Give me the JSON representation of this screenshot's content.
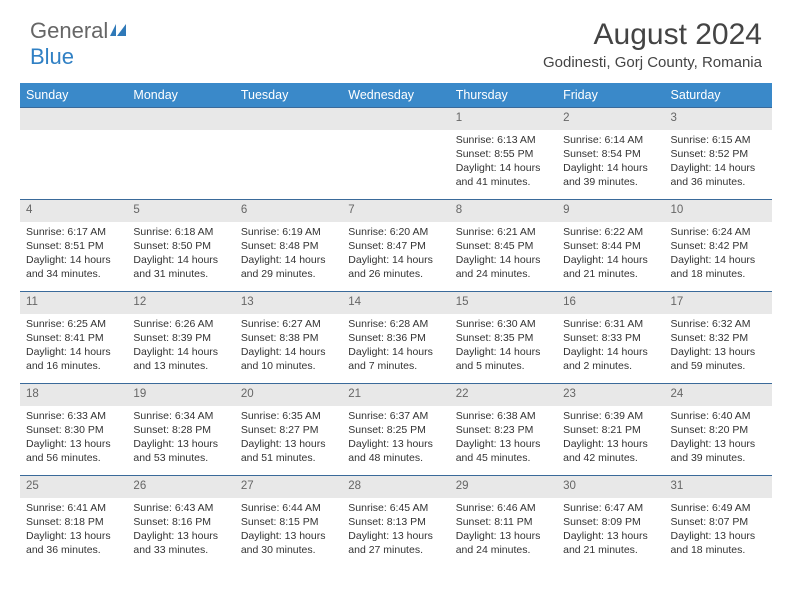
{
  "logo": {
    "text1": "General",
    "text2": "Blue"
  },
  "month_title": "August 2024",
  "location": "Godinesti, Gorj County, Romania",
  "header_bg": "#3a89c9",
  "header_fg": "#ffffff",
  "daynum_bg": "#e8e8e8",
  "border_color": "#3a6a9a",
  "day_headers": [
    "Sunday",
    "Monday",
    "Tuesday",
    "Wednesday",
    "Thursday",
    "Friday",
    "Saturday"
  ],
  "weeks": [
    [
      null,
      null,
      null,
      null,
      {
        "n": "1",
        "sr": "Sunrise: 6:13 AM",
        "ss": "Sunset: 8:55 PM",
        "dl": "Daylight: 14 hours and 41 minutes."
      },
      {
        "n": "2",
        "sr": "Sunrise: 6:14 AM",
        "ss": "Sunset: 8:54 PM",
        "dl": "Daylight: 14 hours and 39 minutes."
      },
      {
        "n": "3",
        "sr": "Sunrise: 6:15 AM",
        "ss": "Sunset: 8:52 PM",
        "dl": "Daylight: 14 hours and 36 minutes."
      }
    ],
    [
      {
        "n": "4",
        "sr": "Sunrise: 6:17 AM",
        "ss": "Sunset: 8:51 PM",
        "dl": "Daylight: 14 hours and 34 minutes."
      },
      {
        "n": "5",
        "sr": "Sunrise: 6:18 AM",
        "ss": "Sunset: 8:50 PM",
        "dl": "Daylight: 14 hours and 31 minutes."
      },
      {
        "n": "6",
        "sr": "Sunrise: 6:19 AM",
        "ss": "Sunset: 8:48 PM",
        "dl": "Daylight: 14 hours and 29 minutes."
      },
      {
        "n": "7",
        "sr": "Sunrise: 6:20 AM",
        "ss": "Sunset: 8:47 PM",
        "dl": "Daylight: 14 hours and 26 minutes."
      },
      {
        "n": "8",
        "sr": "Sunrise: 6:21 AM",
        "ss": "Sunset: 8:45 PM",
        "dl": "Daylight: 14 hours and 24 minutes."
      },
      {
        "n": "9",
        "sr": "Sunrise: 6:22 AM",
        "ss": "Sunset: 8:44 PM",
        "dl": "Daylight: 14 hours and 21 minutes."
      },
      {
        "n": "10",
        "sr": "Sunrise: 6:24 AM",
        "ss": "Sunset: 8:42 PM",
        "dl": "Daylight: 14 hours and 18 minutes."
      }
    ],
    [
      {
        "n": "11",
        "sr": "Sunrise: 6:25 AM",
        "ss": "Sunset: 8:41 PM",
        "dl": "Daylight: 14 hours and 16 minutes."
      },
      {
        "n": "12",
        "sr": "Sunrise: 6:26 AM",
        "ss": "Sunset: 8:39 PM",
        "dl": "Daylight: 14 hours and 13 minutes."
      },
      {
        "n": "13",
        "sr": "Sunrise: 6:27 AM",
        "ss": "Sunset: 8:38 PM",
        "dl": "Daylight: 14 hours and 10 minutes."
      },
      {
        "n": "14",
        "sr": "Sunrise: 6:28 AM",
        "ss": "Sunset: 8:36 PM",
        "dl": "Daylight: 14 hours and 7 minutes."
      },
      {
        "n": "15",
        "sr": "Sunrise: 6:30 AM",
        "ss": "Sunset: 8:35 PM",
        "dl": "Daylight: 14 hours and 5 minutes."
      },
      {
        "n": "16",
        "sr": "Sunrise: 6:31 AM",
        "ss": "Sunset: 8:33 PM",
        "dl": "Daylight: 14 hours and 2 minutes."
      },
      {
        "n": "17",
        "sr": "Sunrise: 6:32 AM",
        "ss": "Sunset: 8:32 PM",
        "dl": "Daylight: 13 hours and 59 minutes."
      }
    ],
    [
      {
        "n": "18",
        "sr": "Sunrise: 6:33 AM",
        "ss": "Sunset: 8:30 PM",
        "dl": "Daylight: 13 hours and 56 minutes."
      },
      {
        "n": "19",
        "sr": "Sunrise: 6:34 AM",
        "ss": "Sunset: 8:28 PM",
        "dl": "Daylight: 13 hours and 53 minutes."
      },
      {
        "n": "20",
        "sr": "Sunrise: 6:35 AM",
        "ss": "Sunset: 8:27 PM",
        "dl": "Daylight: 13 hours and 51 minutes."
      },
      {
        "n": "21",
        "sr": "Sunrise: 6:37 AM",
        "ss": "Sunset: 8:25 PM",
        "dl": "Daylight: 13 hours and 48 minutes."
      },
      {
        "n": "22",
        "sr": "Sunrise: 6:38 AM",
        "ss": "Sunset: 8:23 PM",
        "dl": "Daylight: 13 hours and 45 minutes."
      },
      {
        "n": "23",
        "sr": "Sunrise: 6:39 AM",
        "ss": "Sunset: 8:21 PM",
        "dl": "Daylight: 13 hours and 42 minutes."
      },
      {
        "n": "24",
        "sr": "Sunrise: 6:40 AM",
        "ss": "Sunset: 8:20 PM",
        "dl": "Daylight: 13 hours and 39 minutes."
      }
    ],
    [
      {
        "n": "25",
        "sr": "Sunrise: 6:41 AM",
        "ss": "Sunset: 8:18 PM",
        "dl": "Daylight: 13 hours and 36 minutes."
      },
      {
        "n": "26",
        "sr": "Sunrise: 6:43 AM",
        "ss": "Sunset: 8:16 PM",
        "dl": "Daylight: 13 hours and 33 minutes."
      },
      {
        "n": "27",
        "sr": "Sunrise: 6:44 AM",
        "ss": "Sunset: 8:15 PM",
        "dl": "Daylight: 13 hours and 30 minutes."
      },
      {
        "n": "28",
        "sr": "Sunrise: 6:45 AM",
        "ss": "Sunset: 8:13 PM",
        "dl": "Daylight: 13 hours and 27 minutes."
      },
      {
        "n": "29",
        "sr": "Sunrise: 6:46 AM",
        "ss": "Sunset: 8:11 PM",
        "dl": "Daylight: 13 hours and 24 minutes."
      },
      {
        "n": "30",
        "sr": "Sunrise: 6:47 AM",
        "ss": "Sunset: 8:09 PM",
        "dl": "Daylight: 13 hours and 21 minutes."
      },
      {
        "n": "31",
        "sr": "Sunrise: 6:49 AM",
        "ss": "Sunset: 8:07 PM",
        "dl": "Daylight: 13 hours and 18 minutes."
      }
    ]
  ]
}
